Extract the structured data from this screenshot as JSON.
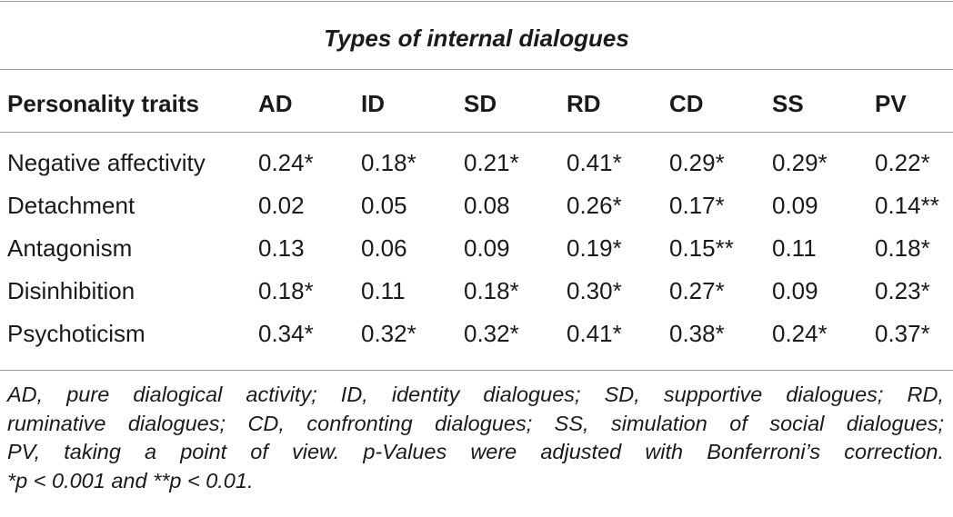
{
  "table": {
    "group_header": "Types of internal dialogues",
    "row_header": "Personality traits",
    "columns": [
      "AD",
      "ID",
      "SD",
      "RD",
      "CD",
      "SS",
      "PV"
    ],
    "rows": [
      {
        "trait": "Negative affectivity",
        "values": [
          "0.24*",
          "0.18*",
          "0.21*",
          "0.41*",
          "0.29*",
          "0.29*",
          "0.22*"
        ]
      },
      {
        "trait": "Detachment",
        "values": [
          "0.02",
          "0.05",
          "0.08",
          "0.26*",
          "0.17*",
          "0.09",
          "0.14**"
        ]
      },
      {
        "trait": "Antagonism",
        "values": [
          "0.13",
          "0.06",
          "0.09",
          "0.19*",
          "0.15**",
          "0.11",
          "0.18*"
        ]
      },
      {
        "trait": "Disinhibition",
        "values": [
          "0.18*",
          "0.11",
          "0.18*",
          "0.30*",
          "0.27*",
          "0.09",
          "0.23*"
        ]
      },
      {
        "trait": "Psychoticism",
        "values": [
          "0.34*",
          "0.32*",
          "0.32*",
          "0.41*",
          "0.38*",
          "0.24*",
          "0.37*"
        ]
      }
    ]
  },
  "footnote": {
    "lines": [
      "AD, pure dialogical activity; ID, identity dialogues; SD, supportive dialogues; RD,",
      "ruminative dialogues; CD, confronting dialogues; SS, simulation of social dialogues;",
      "PV, taking a point of view. p-Values were adjusted with Bonferroni’s correction.",
      "*p < 0.001 and **p < 0.01."
    ]
  }
}
